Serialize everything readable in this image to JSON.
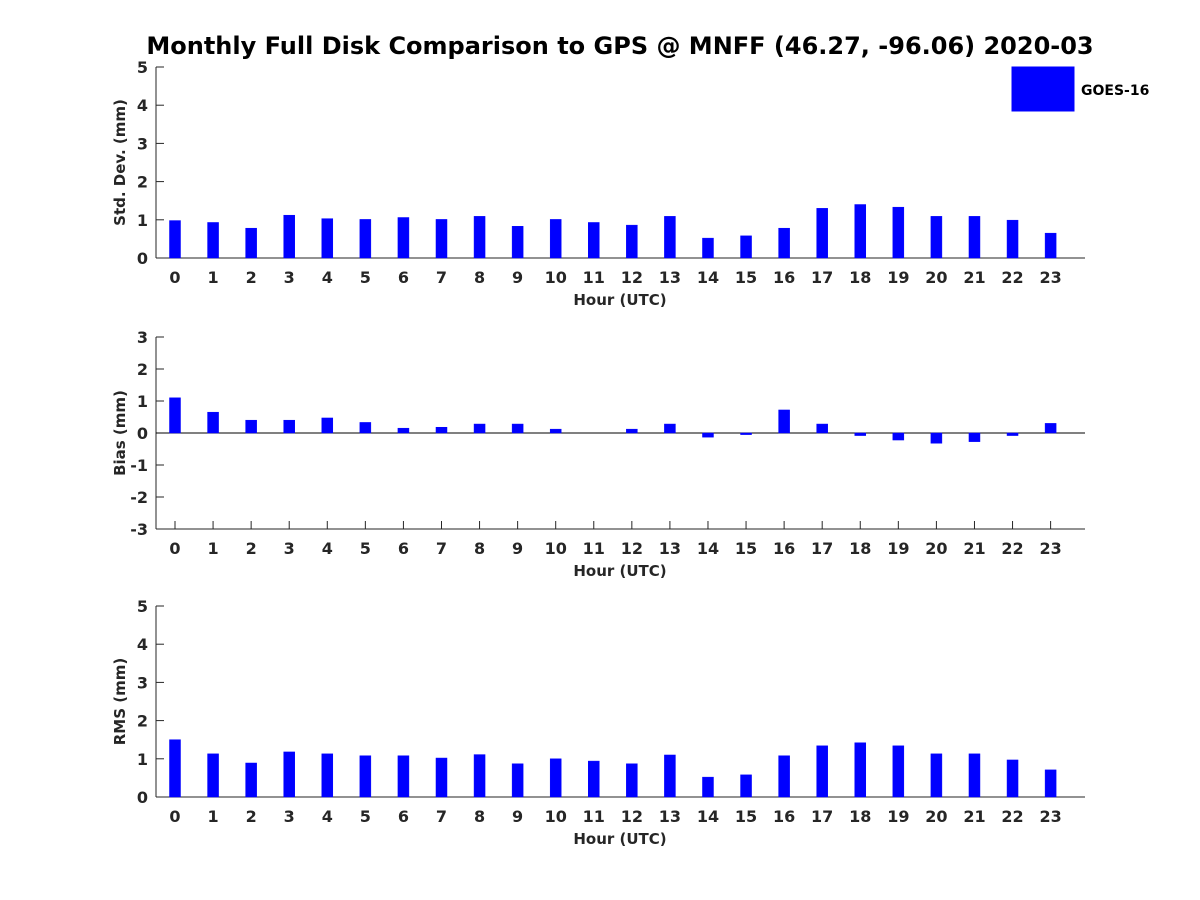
{
  "title": "Monthly Full Disk Comparison to GPS @ MNFF (46.27, -96.06) 2020-03",
  "colors": {
    "bar": "#0000ff",
    "axis": "#262626",
    "zero_line": "#000000"
  },
  "legend": {
    "label": "GOES-16",
    "placement": "top-right"
  },
  "chart_data": [
    {
      "type": "bar",
      "name": "std_dev",
      "ylabel": "Std. Dev. (mm)",
      "xlabel": "Hour (UTC)",
      "ylim": [
        0,
        5
      ],
      "yticks": [
        0,
        1,
        2,
        3,
        4,
        5
      ],
      "categories": [
        "0",
        "1",
        "2",
        "3",
        "4",
        "5",
        "6",
        "7",
        "8",
        "9",
        "10",
        "11",
        "12",
        "13",
        "14",
        "15",
        "16",
        "17",
        "18",
        "19",
        "20",
        "21",
        "22",
        "23"
      ],
      "series": [
        {
          "name": "GOES-16",
          "values": [
            0.98,
            0.93,
            0.78,
            1.12,
            1.03,
            1.01,
            1.06,
            1.01,
            1.09,
            0.83,
            1.01,
            0.93,
            0.86,
            1.09,
            0.52,
            0.58,
            0.78,
            1.3,
            1.4,
            1.33,
            1.09,
            1.09,
            0.99,
            0.65
          ]
        }
      ]
    },
    {
      "type": "bar",
      "name": "bias",
      "ylabel": "Bias (mm)",
      "xlabel": "Hour (UTC)",
      "ylim": [
        -3,
        3
      ],
      "yticks": [
        -3,
        -2,
        -1,
        0,
        1,
        2,
        3
      ],
      "categories": [
        "0",
        "1",
        "2",
        "3",
        "4",
        "5",
        "6",
        "7",
        "8",
        "9",
        "10",
        "11",
        "12",
        "13",
        "14",
        "15",
        "16",
        "17",
        "18",
        "19",
        "20",
        "21",
        "22",
        "23"
      ],
      "series": [
        {
          "name": "GOES-16",
          "values": [
            1.1,
            0.65,
            0.4,
            0.4,
            0.47,
            0.33,
            0.15,
            0.18,
            0.28,
            0.28,
            0.12,
            0.0,
            0.12,
            0.28,
            -0.13,
            -0.05,
            0.72,
            0.28,
            -0.08,
            -0.22,
            -0.32,
            -0.27,
            -0.08,
            0.3
          ]
        }
      ]
    },
    {
      "type": "bar",
      "name": "rms",
      "ylabel": "RMS (mm)",
      "xlabel": "Hour (UTC)",
      "ylim": [
        0,
        5
      ],
      "yticks": [
        0,
        1,
        2,
        3,
        4,
        5
      ],
      "categories": [
        "0",
        "1",
        "2",
        "3",
        "4",
        "5",
        "6",
        "7",
        "8",
        "9",
        "10",
        "11",
        "12",
        "13",
        "14",
        "15",
        "16",
        "17",
        "18",
        "19",
        "20",
        "21",
        "22",
        "23"
      ],
      "series": [
        {
          "name": "GOES-16",
          "values": [
            1.5,
            1.13,
            0.89,
            1.18,
            1.13,
            1.08,
            1.08,
            1.02,
            1.11,
            0.87,
            1.0,
            0.94,
            0.87,
            1.1,
            0.52,
            0.58,
            1.08,
            1.34,
            1.42,
            1.34,
            1.13,
            1.13,
            0.97,
            0.71
          ]
        }
      ]
    }
  ]
}
